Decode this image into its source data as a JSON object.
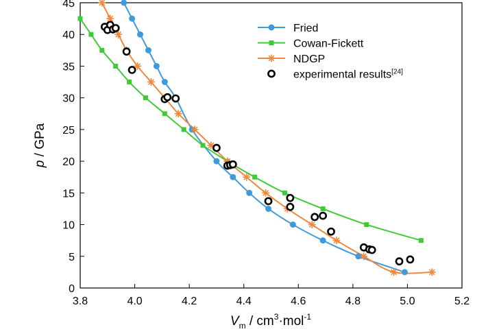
{
  "chart_data": {
    "type": "line",
    "xlabel": {
      "main": "V",
      "sub": "m",
      "rest": " / cm",
      "sup": "3",
      "rest2": "·mol",
      "sup2": "-1"
    },
    "ylabel": {
      "italic": "p",
      "rest": " / GPa"
    },
    "xlim": [
      3.8,
      5.2
    ],
    "ylim": [
      0,
      45
    ],
    "xticks": [
      "3.8",
      "4.0",
      "4.2",
      "4.4",
      "4.6",
      "4.8",
      "5.0",
      "5.2"
    ],
    "yticks": [
      "0",
      "5",
      "10",
      "15",
      "20",
      "25",
      "30",
      "35",
      "40",
      "45"
    ],
    "legend_position": "top-right",
    "grid": false,
    "series": [
      {
        "name": "Fried",
        "color": "#3d9bdc",
        "marker": "circle",
        "x": [
          3.96,
          3.99,
          4.02,
          4.05,
          4.08,
          4.11,
          4.15,
          4.21,
          4.3,
          4.36,
          4.42,
          4.49,
          4.58,
          4.69,
          4.82,
          4.99
        ],
        "y": [
          45,
          42.5,
          40,
          37.5,
          35,
          32.5,
          30,
          25,
          20,
          17.5,
          15,
          12.5,
          10,
          7.5,
          5,
          2.5
        ]
      },
      {
        "name": "Cowan-Fickett",
        "color": "#3ecb35",
        "marker": "square",
        "x": [
          3.8,
          3.84,
          3.88,
          3.93,
          3.98,
          4.04,
          4.11,
          4.18,
          4.25,
          4.34,
          4.44,
          4.55,
          4.69,
          4.85,
          5.05
        ],
        "y": [
          42.5,
          40,
          37.5,
          35,
          32.5,
          30,
          27.5,
          25,
          22.5,
          20,
          17.5,
          15,
          12.5,
          10,
          7.5
        ]
      },
      {
        "name": "NDGP",
        "color": "#f0883c",
        "marker": "star",
        "x": [
          3.88,
          3.91,
          3.94,
          3.97,
          4.01,
          4.06,
          4.11,
          4.16,
          4.22,
          4.28,
          4.34,
          4.41,
          4.48,
          4.56,
          4.65,
          4.74,
          4.84,
          4.95,
          5.09
        ],
        "y": [
          45,
          42.5,
          40,
          37.5,
          35,
          32.5,
          30,
          27.5,
          25,
          22.5,
          20,
          17.5,
          15,
          12.5,
          10,
          7.5,
          5,
          2.5,
          2.5
        ]
      },
      {
        "name": "experimental results",
        "name_sup": "[24]",
        "color": "#000000",
        "marker": "ring",
        "x": [
          3.89,
          3.9,
          3.91,
          3.92,
          3.93,
          3.97,
          3.99,
          4.11,
          4.12,
          4.15,
          4.3,
          4.34,
          4.35,
          4.36,
          4.49,
          4.57,
          4.57,
          4.66,
          4.69,
          4.72,
          4.84,
          4.86,
          4.87,
          4.97,
          5.01
        ],
        "y": [
          41.2,
          40.7,
          41.5,
          40.8,
          41.0,
          37.3,
          34.4,
          29.8,
          30.1,
          29.9,
          22.1,
          19.3,
          19.4,
          19.5,
          13.7,
          14.2,
          12.8,
          11.2,
          11.4,
          8.9,
          6.4,
          6.1,
          6.0,
          4.2,
          4.5
        ]
      }
    ]
  }
}
